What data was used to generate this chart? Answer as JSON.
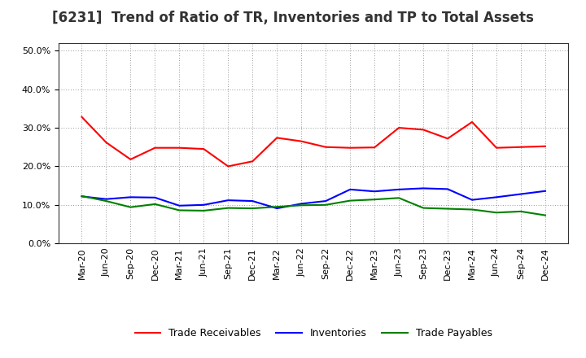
{
  "title": "[6231]  Trend of Ratio of TR, Inventories and TP to Total Assets",
  "x_labels": [
    "Mar-20",
    "Jun-20",
    "Sep-20",
    "Dec-20",
    "Mar-21",
    "Jun-21",
    "Sep-21",
    "Dec-21",
    "Mar-22",
    "Jun-22",
    "Sep-22",
    "Dec-22",
    "Mar-23",
    "Jun-23",
    "Sep-23",
    "Dec-23",
    "Mar-24",
    "Jun-24",
    "Sep-24",
    "Dec-24"
  ],
  "trade_receivables": [
    0.328,
    0.262,
    0.218,
    0.248,
    0.248,
    0.245,
    0.2,
    0.213,
    0.274,
    0.265,
    0.25,
    0.248,
    0.249,
    0.3,
    0.295,
    0.272,
    0.315,
    0.248,
    0.25,
    0.252
  ],
  "inventories": [
    0.122,
    0.115,
    0.12,
    0.119,
    0.098,
    0.1,
    0.112,
    0.11,
    0.091,
    0.103,
    0.11,
    0.14,
    0.135,
    0.14,
    0.143,
    0.141,
    0.113,
    0.12,
    0.128,
    0.136
  ],
  "trade_payables": [
    0.123,
    0.11,
    0.094,
    0.102,
    0.086,
    0.085,
    0.092,
    0.091,
    0.095,
    0.099,
    0.1,
    0.111,
    0.114,
    0.118,
    0.092,
    0.09,
    0.088,
    0.08,
    0.083,
    0.073
  ],
  "tr_color": "#ff0000",
  "inv_color": "#0000ff",
  "tp_color": "#008000",
  "ylim": [
    0.0,
    0.52
  ],
  "yticks": [
    0.0,
    0.1,
    0.2,
    0.3,
    0.4,
    0.5
  ],
  "bg_color": "#ffffff",
  "plot_bg_color": "#ffffff",
  "grid_color": "#aaaaaa",
  "title_fontsize": 12,
  "title_color": "#333333",
  "legend_labels": [
    "Trade Receivables",
    "Inventories",
    "Trade Payables"
  ]
}
